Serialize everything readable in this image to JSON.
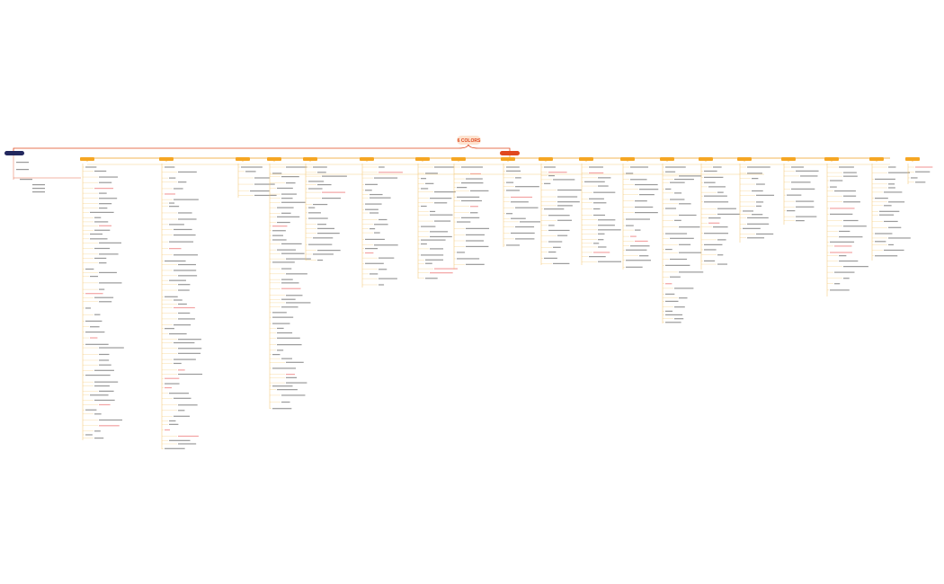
{
  "root": {
    "title": "6 COLORS"
  }
}
